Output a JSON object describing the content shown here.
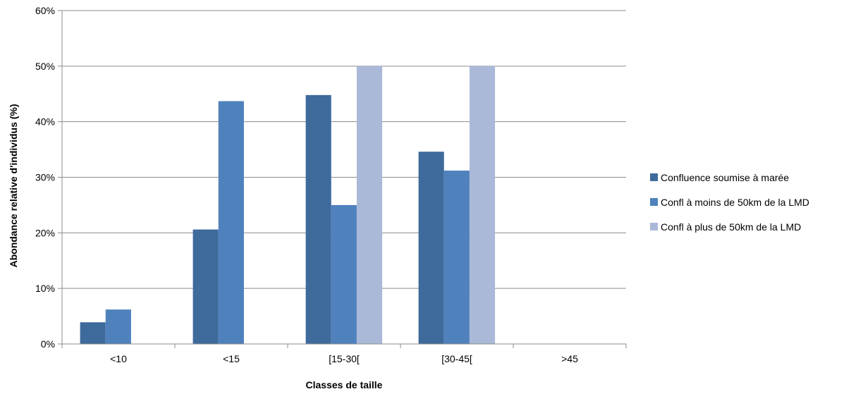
{
  "chart_data": {
    "type": "bar",
    "title": "",
    "xlabel": "Classes de taille",
    "ylabel": "Abondance relative d'individus (%)",
    "ylim": [
      0,
      60
    ],
    "yticks": [
      0,
      10,
      20,
      30,
      40,
      50,
      60
    ],
    "ytick_labels": [
      "0%",
      "10%",
      "20%",
      "30%",
      "40%",
      "50%",
      "60%"
    ],
    "grid": true,
    "legend_position": "right",
    "categories": [
      "<10",
      "<15",
      "[15-30[",
      "[30-45[",
      ">45"
    ],
    "series": [
      {
        "name": "Confluence soumise à marée",
        "color": "#3E6A9C",
        "values": [
          3.9,
          20.6,
          44.8,
          34.6,
          0
        ]
      },
      {
        "name": "Confl à moins de 50km de la LMD",
        "color": "#4F81BD",
        "values": [
          6.2,
          43.7,
          25.0,
          31.2,
          0
        ]
      },
      {
        "name": "Confl à plus de 50km de la LMD",
        "color": "#AAB9D8",
        "values": [
          0,
          0,
          50.0,
          50.0,
          0
        ]
      }
    ]
  }
}
